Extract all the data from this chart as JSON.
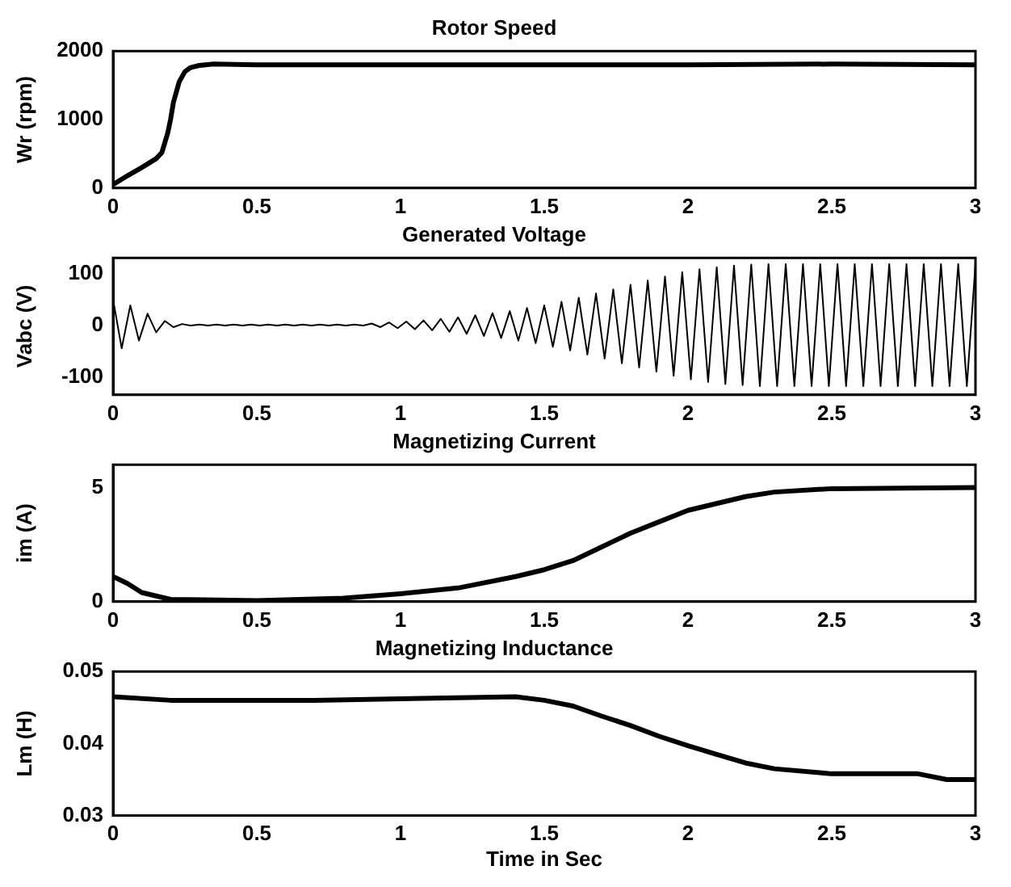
{
  "chart_data": [
    {
      "type": "line",
      "title": "Rotor Speed",
      "ylabel": "Wr (rpm)",
      "color": "#000000",
      "x": [
        0,
        0.05,
        0.1,
        0.15,
        0.17,
        0.19,
        0.2,
        0.21,
        0.23,
        0.25,
        0.27,
        0.3,
        0.35,
        0.5,
        1,
        1.5,
        2,
        2.5,
        3
      ],
      "values": [
        50,
        180,
        300,
        430,
        520,
        800,
        1000,
        1250,
        1550,
        1700,
        1760,
        1790,
        1810,
        1800,
        1800,
        1800,
        1800,
        1810,
        1800
      ],
      "xlim": [
        0,
        3
      ],
      "xticks": [
        0,
        0.5,
        1,
        1.5,
        2,
        2.5,
        3
      ],
      "ylim": [
        0,
        2000
      ],
      "yticks": [
        0,
        1000,
        2000
      ]
    },
    {
      "type": "line",
      "title": "Generated Voltage",
      "ylabel": "Vabc (V)",
      "color": "#000000",
      "x": [
        0,
        0.03,
        0.06,
        0.09,
        0.12,
        0.15,
        0.18,
        0.21,
        0.24,
        0.27,
        0.3,
        0.33,
        0.36,
        0.39,
        0.42,
        0.45,
        0.48,
        0.51,
        0.54,
        0.57,
        0.6,
        0.63,
        0.66,
        0.69,
        0.72,
        0.75,
        0.78,
        0.81,
        0.84,
        0.87,
        0.9,
        0.93,
        0.96,
        0.99,
        1.02,
        1.05,
        1.08,
        1.11,
        1.14,
        1.17,
        1.2,
        1.23,
        1.26,
        1.29,
        1.32,
        1.35,
        1.38,
        1.41,
        1.44,
        1.47,
        1.5,
        1.53,
        1.56,
        1.59,
        1.62,
        1.65,
        1.68,
        1.71,
        1.74,
        1.77,
        1.8,
        1.83,
        1.86,
        1.89,
        1.92,
        1.95,
        1.98,
        2.01,
        2.04,
        2.07,
        2.1,
        2.13,
        2.16,
        2.19,
        2.22,
        2.25,
        2.28,
        2.31,
        2.34,
        2.37,
        2.4,
        2.43,
        2.46,
        2.49,
        2.52,
        2.55,
        2.58,
        2.61,
        2.64,
        2.67,
        2.7,
        2.73,
        2.76,
        2.79,
        2.82,
        2.85,
        2.88,
        2.91,
        2.94,
        2.97,
        3
      ],
      "values": [
        50,
        -45,
        38,
        -30,
        22,
        -14,
        8,
        -4,
        2,
        -1,
        1,
        -1,
        1,
        -1,
        1,
        -1,
        1,
        -1,
        1,
        -1,
        1,
        -1,
        1,
        -1,
        1,
        -1,
        1,
        -1,
        1,
        -1,
        3,
        -4,
        5,
        -6,
        7,
        -8,
        9,
        -10,
        12,
        -13,
        15,
        -17,
        19,
        -21,
        23,
        -25,
        27,
        -30,
        33,
        -35,
        38,
        -42,
        45,
        -49,
        53,
        -57,
        61,
        -65,
        69,
        -74,
        78,
        -82,
        86,
        -90,
        94,
        -98,
        102,
        -105,
        108,
        -110,
        112,
        -114,
        115,
        -116,
        117,
        -118,
        118,
        -118,
        118,
        -118,
        118,
        -118,
        118,
        -118,
        118,
        -118,
        118,
        -118,
        118,
        -118,
        118,
        -118,
        118,
        -118,
        118,
        -118,
        118,
        -118,
        118,
        -118,
        118
      ],
      "xlim": [
        0,
        3
      ],
      "xticks": [
        0,
        0.5,
        1,
        1.5,
        2,
        2.5,
        3
      ],
      "ylim": [
        -135,
        130
      ],
      "yticks": [
        -100,
        0,
        100
      ]
    },
    {
      "type": "line",
      "title": "Magnetizing Current",
      "ylabel": "im (A)",
      "color": "#000000",
      "x": [
        0,
        0.05,
        0.1,
        0.2,
        0.5,
        0.8,
        1,
        1.2,
        1.4,
        1.5,
        1.6,
        1.7,
        1.8,
        1.9,
        2,
        2.1,
        2.2,
        2.3,
        2.5,
        3
      ],
      "values": [
        1.1,
        0.8,
        0.4,
        0.1,
        0.05,
        0.15,
        0.35,
        0.6,
        1.1,
        1.4,
        1.8,
        2.4,
        3,
        3.5,
        4,
        4.3,
        4.6,
        4.8,
        4.95,
        5
      ],
      "xlim": [
        0,
        3
      ],
      "xticks": [
        0,
        0.5,
        1,
        1.5,
        2,
        2.5,
        3
      ],
      "ylim": [
        0,
        6
      ],
      "yticks": [
        0,
        5
      ]
    },
    {
      "type": "line",
      "title": "Magnetizing Inductance",
      "ylabel": "Lm (H)",
      "xlabel": "Time in Sec",
      "color": "#000000",
      "x": [
        0,
        0.2,
        0.7,
        1.4,
        1.5,
        1.6,
        1.7,
        1.8,
        1.9,
        2,
        2.1,
        2.2,
        2.3,
        2.5,
        2.8,
        2.9,
        3
      ],
      "values": [
        0.0465,
        0.046,
        0.046,
        0.0465,
        0.046,
        0.0452,
        0.0438,
        0.0425,
        0.041,
        0.0397,
        0.0385,
        0.0373,
        0.0365,
        0.0358,
        0.0358,
        0.035,
        0.035
      ],
      "xlim": [
        0,
        3
      ],
      "xticks": [
        0,
        0.5,
        1,
        1.5,
        2,
        2.5,
        3
      ],
      "ylim": [
        0.03,
        0.05
      ],
      "yticks": [
        0.03,
        0.04,
        0.05
      ]
    }
  ]
}
